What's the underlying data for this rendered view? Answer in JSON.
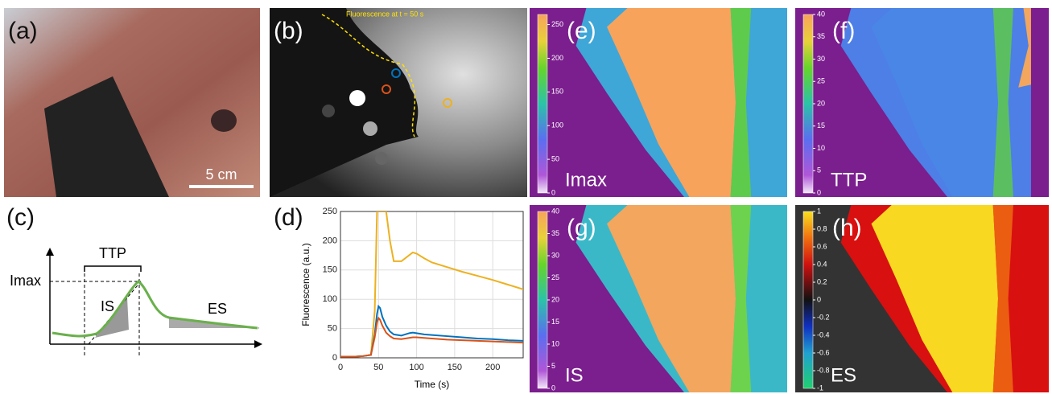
{
  "panels": {
    "a": {
      "label": "(a)",
      "scale_text": "5 cm"
    },
    "b": {
      "label": "(b)",
      "caption": "Fluorescence at t = 50 s"
    },
    "c": {
      "label": "(c)",
      "ttp": "TTP",
      "imax": "Imax",
      "is": "IS",
      "es": "ES"
    },
    "d": {
      "label": "(d)"
    },
    "e": {
      "label": "(e)",
      "name": "Imax",
      "colorbar_range": [
        0,
        265
      ],
      "colorbar_ticks": [
        0,
        50,
        100,
        150,
        200,
        250
      ]
    },
    "f": {
      "label": "(f)",
      "name": "TTP",
      "colorbar_range": [
        0,
        40
      ],
      "colorbar_ticks": [
        0,
        5,
        10,
        15,
        20,
        25,
        30,
        35,
        40
      ]
    },
    "g": {
      "label": "(g)",
      "name": "IS",
      "colorbar_range": [
        0,
        40
      ],
      "colorbar_ticks": [
        0,
        5,
        10,
        15,
        20,
        25,
        30,
        35,
        40
      ]
    },
    "h": {
      "label": "(h)",
      "name": "ES",
      "colorbar_range": [
        -1,
        1
      ],
      "colorbar_ticks": [
        -1,
        -0.8,
        -0.6,
        -0.4,
        -0.2,
        0,
        0.2,
        0.4,
        0.6,
        0.8,
        1
      ]
    }
  },
  "chart_data": {
    "type": "line",
    "xlabel": "Time (s)",
    "ylabel": "Fluorescence (a.u.)",
    "x": [
      0,
      10,
      20,
      30,
      40,
      45,
      48,
      50,
      52,
      55,
      60,
      65,
      70,
      80,
      90,
      95,
      100,
      110,
      120,
      140,
      160,
      180,
      200,
      220,
      240
    ],
    "series": [
      {
        "color": "#EDB120",
        "values": [
          2,
          2,
          2,
          3,
          5,
          80,
          250,
          250,
          250,
          250,
          250,
          200,
          165,
          165,
          175,
          180,
          178,
          170,
          163,
          155,
          147,
          140,
          133,
          125,
          117
        ]
      },
      {
        "color": "#0072BD",
        "values": [
          2,
          2,
          2,
          3,
          5,
          40,
          75,
          88,
          85,
          70,
          55,
          45,
          40,
          38,
          42,
          43,
          42,
          40,
          39,
          37,
          35,
          33,
          32,
          30,
          29
        ]
      },
      {
        "color": "#D95319",
        "values": [
          2,
          2,
          2,
          3,
          5,
          35,
          60,
          68,
          65,
          55,
          43,
          37,
          33,
          32,
          34,
          35,
          35,
          34,
          33,
          31,
          30,
          29,
          28,
          27,
          26
        ]
      }
    ],
    "xlim": [
      0,
      240
    ],
    "xticks": [
      0,
      50,
      100,
      150,
      200
    ],
    "ylim": [
      0,
      250
    ],
    "yticks": [
      0,
      50,
      100,
      150,
      200,
      250
    ],
    "grid": true
  }
}
